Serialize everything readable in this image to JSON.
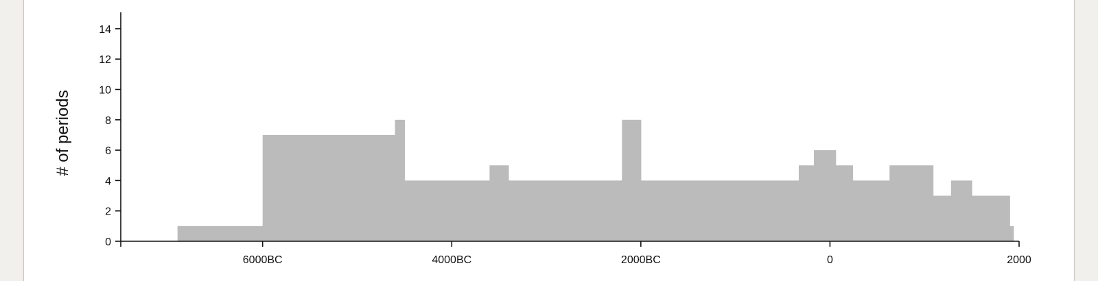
{
  "chart_data": {
    "type": "area",
    "title": "",
    "xlabel": "",
    "ylabel": "# of periods",
    "xlim": [
      -7500,
      2000
    ],
    "ylim": [
      0,
      15
    ],
    "grid": false,
    "x_ticks": [
      {
        "value": -6000,
        "label": "6000BC"
      },
      {
        "value": -4000,
        "label": "4000BC"
      },
      {
        "value": -2000,
        "label": "2000BC"
      },
      {
        "value": 0,
        "label": "0"
      },
      {
        "value": 2000,
        "label": "2000"
      }
    ],
    "y_ticks": [
      0,
      2,
      4,
      6,
      8,
      10,
      12,
      14
    ],
    "color": "#bbbbbb",
    "series": [
      {
        "step_points": [
          {
            "x": -6900,
            "y": 1
          },
          {
            "x": -6000,
            "y": 7
          },
          {
            "x": -4600,
            "y": 8
          },
          {
            "x": -4500,
            "y": 4
          },
          {
            "x": -3600,
            "y": 5
          },
          {
            "x": -3400,
            "y": 4
          },
          {
            "x": -2200,
            "y": 8
          },
          {
            "x": -2000,
            "y": 4
          },
          {
            "x": -1100,
            "y": 4
          },
          {
            "x": -330,
            "y": 5
          },
          {
            "x": -170,
            "y": 6
          },
          {
            "x": 60,
            "y": 5
          },
          {
            "x": 240,
            "y": 4
          },
          {
            "x": 630,
            "y": 5
          },
          {
            "x": 1090,
            "y": 3
          },
          {
            "x": 1280,
            "y": 4
          },
          {
            "x": 1500,
            "y": 3
          },
          {
            "x": 1900,
            "y": 1
          },
          {
            "x": 1940,
            "y": 0
          }
        ]
      }
    ]
  }
}
